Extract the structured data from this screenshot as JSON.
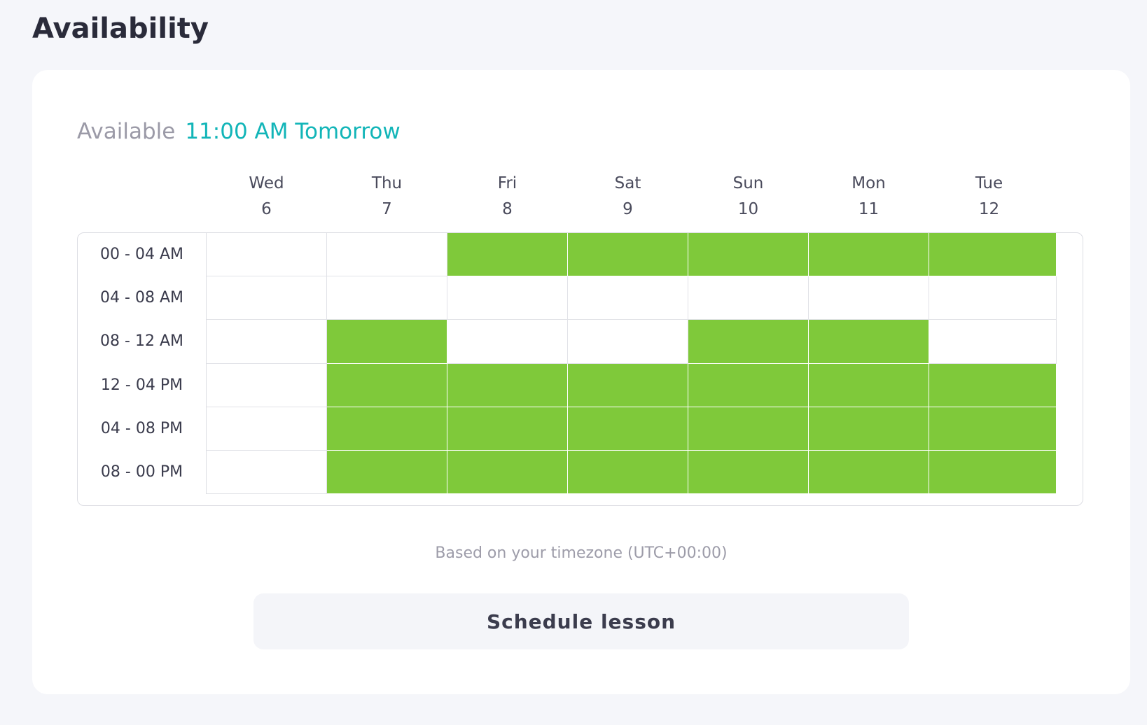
{
  "page": {
    "title": "Availability"
  },
  "availability": {
    "label": "Available",
    "next_slot": "11:00 AM Tomorrow",
    "colors": {
      "available": "#7fc93a",
      "accent": "#12b5b8"
    },
    "days": [
      {
        "name": "Wed",
        "date": "6"
      },
      {
        "name": "Thu",
        "date": "7"
      },
      {
        "name": "Fri",
        "date": "8"
      },
      {
        "name": "Sat",
        "date": "9"
      },
      {
        "name": "Sun",
        "date": "10"
      },
      {
        "name": "Mon",
        "date": "11"
      },
      {
        "name": "Tue",
        "date": "12"
      }
    ],
    "slots": [
      {
        "label": "00 - 04 AM",
        "available": [
          false,
          false,
          true,
          true,
          true,
          true,
          true
        ]
      },
      {
        "label": "04 - 08 AM",
        "available": [
          false,
          false,
          false,
          false,
          false,
          false,
          false
        ]
      },
      {
        "label": "08 - 12 AM",
        "available": [
          false,
          true,
          false,
          false,
          true,
          true,
          false
        ]
      },
      {
        "label": "12 - 04 PM",
        "available": [
          false,
          true,
          true,
          true,
          true,
          true,
          true
        ]
      },
      {
        "label": "04 - 08 PM",
        "available": [
          false,
          true,
          true,
          true,
          true,
          true,
          true
        ]
      },
      {
        "label": "08 - 00 PM",
        "available": [
          false,
          true,
          true,
          true,
          true,
          true,
          true
        ]
      }
    ],
    "timezone_note": "Based on your timezone (UTC+00:00)"
  },
  "actions": {
    "schedule_label": "Schedule lesson"
  }
}
